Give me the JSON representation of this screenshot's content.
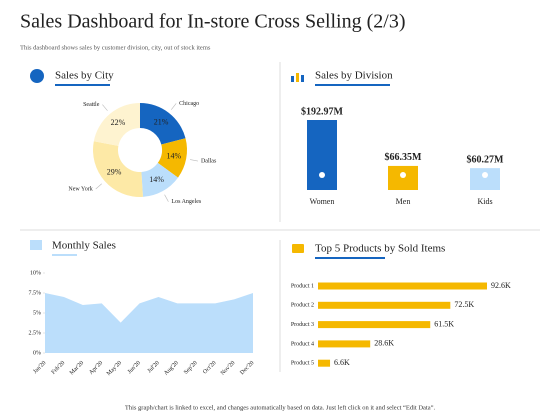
{
  "title": "Sales Dashboard for In-store Cross Selling (2/3)",
  "subtitle": "This dashboard shows sales by customer division, city, out of stock items",
  "footer": "This graph/chart is linked to excel, and changes automatically based on data. Just left click on it and select “Edit Data”.",
  "chart_data": [
    {
      "type": "donut",
      "title": "Sales by City",
      "categories": [
        "Chicago",
        "Dallas",
        "Los Angeles",
        "New York",
        "Seattle"
      ],
      "values": [
        21,
        14,
        14,
        29,
        22
      ],
      "value_labels": [
        "21%",
        "14%",
        "14%",
        "29%",
        "22%"
      ],
      "colors": [
        "#1565c0",
        "#f5b800",
        "#bbdefb",
        "#fde9a6",
        "#fef3d0"
      ]
    },
    {
      "type": "bar",
      "title": "Sales by Division",
      "categories": [
        "Women",
        "Men",
        "Kids"
      ],
      "values": [
        192.97,
        66.35,
        60.27
      ],
      "value_labels": [
        "$192.97M",
        "$66.35M",
        "$60.27M"
      ],
      "colors": [
        "#1565c0",
        "#f5b800",
        "#bbdefb"
      ]
    },
    {
      "type": "area",
      "title": "Monthly Sales",
      "categories": [
        "Jan'20",
        "Feb'20",
        "Mar'20",
        "Apr'20",
        "May'20",
        "Jun'20",
        "Jul'20",
        "Aug'20",
        "Sep'20",
        "Oct'20",
        "Nov'20",
        "Dec'20"
      ],
      "values": [
        7.5,
        7.0,
        6.0,
        6.2,
        3.8,
        6.2,
        7.0,
        6.2,
        6.2,
        6.2,
        6.7,
        7.5
      ],
      "color": "#bbdefb",
      "ylim": [
        0,
        10
      ],
      "yticks": [
        {
          "value": 0,
          "label": "0%"
        },
        {
          "value": 2.5,
          "label": "2.5%"
        },
        {
          "value": 5,
          "label": "5%"
        },
        {
          "value": 7.5,
          "label": "7.5%"
        },
        {
          "value": 10,
          "label": "10%"
        }
      ]
    },
    {
      "type": "hbar",
      "title": "Top 5 Products by Sold Items",
      "categories": [
        "Product 1",
        "Product 2",
        "Product 3",
        "Product 4",
        "Product 5"
      ],
      "values": [
        92.6,
        72.5,
        61.5,
        28.6,
        6.6
      ],
      "value_labels": [
        "92.6K",
        "72.5K",
        "61.5K",
        "28.6K",
        "6.6K"
      ],
      "color": "#f5b800"
    }
  ]
}
